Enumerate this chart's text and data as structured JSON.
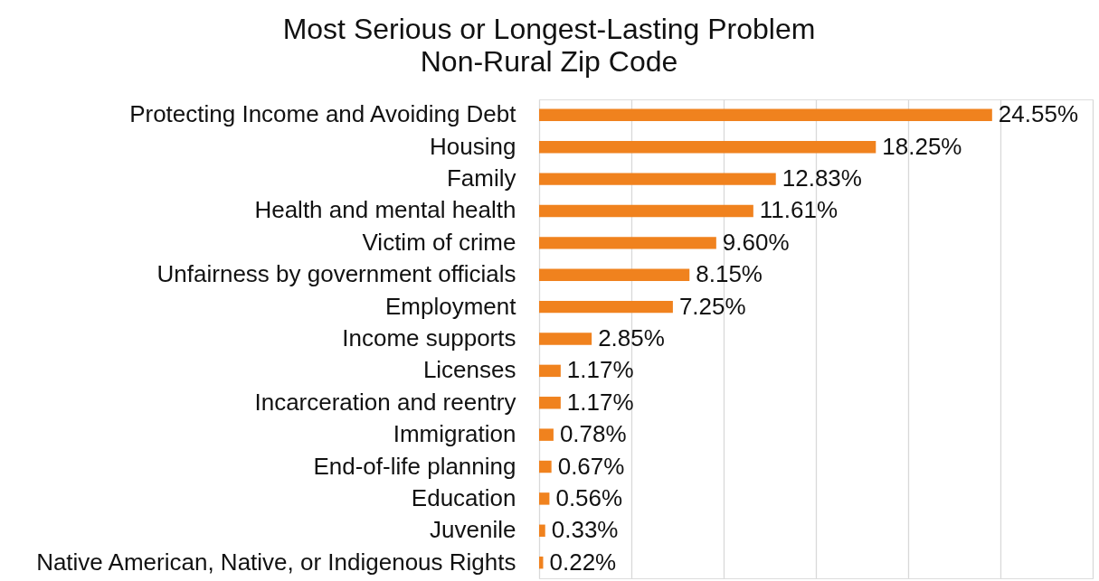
{
  "chart_data": {
    "type": "bar",
    "orientation": "horizontal",
    "title": "Most Serious or Longest-Lasting Problem",
    "subtitle": "Non-Rural Zip Code",
    "categories": [
      "Protecting Income and Avoiding Debt",
      "Housing",
      "Family",
      "Health and mental health",
      "Victim of crime",
      "Unfairness by government officials",
      "Employment",
      "Income supports",
      "Licenses",
      "Incarceration and reentry",
      "Immigration",
      "End-of-life planning",
      "Education",
      "Juvenile",
      "Native American, Native, or Indigenous Rights"
    ],
    "values": [
      24.55,
      18.25,
      12.83,
      11.61,
      9.6,
      8.15,
      7.25,
      2.85,
      1.17,
      1.17,
      0.78,
      0.67,
      0.56,
      0.33,
      0.22
    ],
    "value_labels": [
      "24.55%",
      "18.25%",
      "12.83%",
      "11.61%",
      "9.60%",
      "8.15%",
      "7.25%",
      "2.85%",
      "1.17%",
      "1.17%",
      "0.78%",
      "0.67%",
      "0.56%",
      "0.33%",
      "0.22%"
    ],
    "color": "#f0821e",
    "xlim": [
      0,
      30
    ],
    "xticks": [
      {
        "value": 0,
        "label": null
      },
      {
        "value": 5,
        "label": null
      },
      {
        "value": 10,
        "label": null
      },
      {
        "value": 15,
        "label": null
      },
      {
        "value": 20,
        "label": null
      },
      {
        "value": 25,
        "label": null
      },
      {
        "value": 30,
        "label": null
      }
    ],
    "grid": "x",
    "tick_labels": "y"
  }
}
